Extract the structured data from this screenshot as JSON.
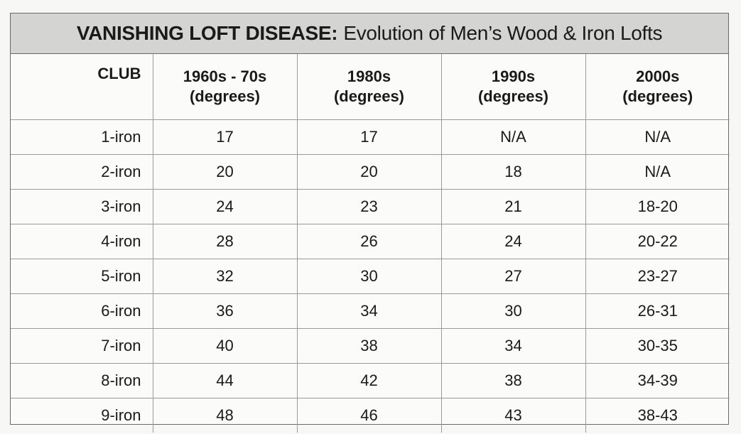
{
  "title": {
    "bold": "VANISHING LOFT DISEASE:",
    "rest": "Evolution of Men’s Wood & Iron Lofts"
  },
  "columns": [
    {
      "line1": "CLUB",
      "line2": ""
    },
    {
      "line1": "1960s - 70s",
      "line2": "(degrees)"
    },
    {
      "line1": "1980s",
      "line2": "(degrees)"
    },
    {
      "line1": "1990s",
      "line2": "(degrees)"
    },
    {
      "line1": "2000s",
      "line2": "(degrees)"
    }
  ],
  "rows": [
    [
      "1-iron",
      "17",
      "17",
      "N/A",
      "N/A"
    ],
    [
      "2-iron",
      "20",
      "20",
      "18",
      "N/A"
    ],
    [
      "3-iron",
      "24",
      "23",
      "21",
      "18-20"
    ],
    [
      "4-iron",
      "28",
      "26",
      "24",
      "20-22"
    ],
    [
      "5-iron",
      "32",
      "30",
      "27",
      "23-27"
    ],
    [
      "6-iron",
      "36",
      "34",
      "30",
      "26-31"
    ],
    [
      "7-iron",
      "40",
      "38",
      "34",
      "30-35"
    ],
    [
      "8-iron",
      "44",
      "42",
      "38",
      "34-39"
    ],
    [
      "9-iron",
      "48",
      "46",
      "43",
      "38-43"
    ]
  ]
}
